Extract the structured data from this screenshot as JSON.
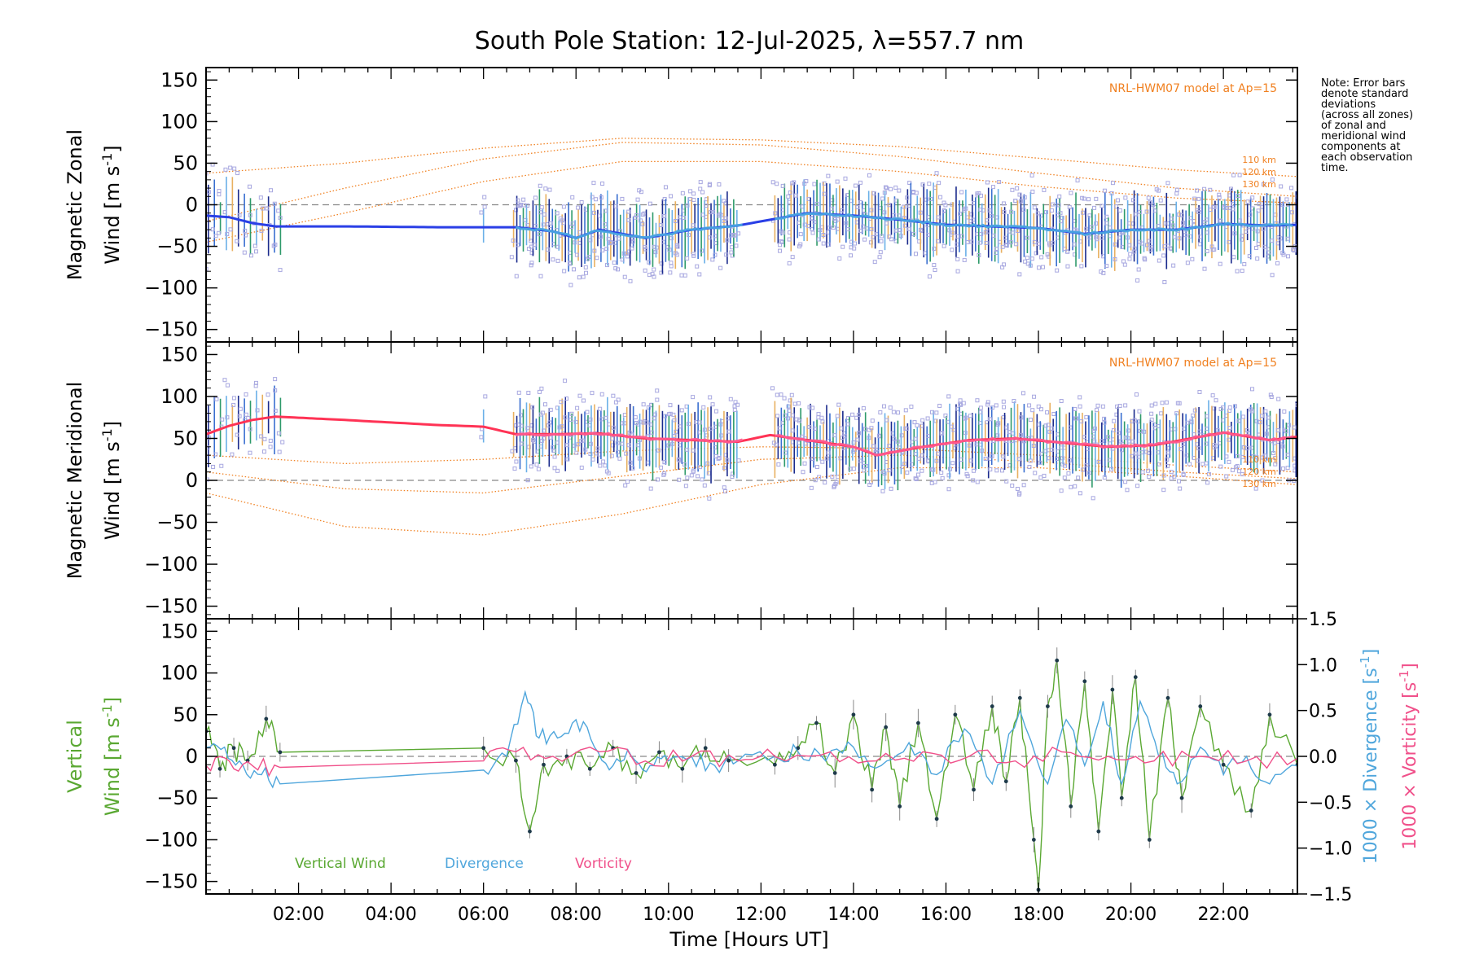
{
  "title": "South Pole Station: 12-Jul-2025, λ=557.7 nm",
  "note_lines": [
    "Note: Error bars",
    "denote standard",
    "deviations",
    "(across all zones)",
    "of zonal and",
    "meridional wind",
    "components at",
    "each observation",
    "time."
  ],
  "colors": {
    "zonal_fit": "#2a3fe6",
    "zonal_fit_light": "#4aa8e0",
    "meridional_fit": "#ff3355",
    "meridional_fit_light": "#ff5a90",
    "zone_points": "#a8a8e0",
    "model": "#f08020",
    "vertical": "#5aa832",
    "divergence": "#4fa6dc",
    "vorticity": "#f0508a",
    "zero_line": "#888888"
  },
  "chart_data": [
    {
      "type": "line",
      "panel": "zonal",
      "ylabel_line1": "Magnetic Zonal",
      "ylabel_line2": "Wind [m s",
      "ylabel_sup": "-1",
      "ylabel_close": "]",
      "ylim": [
        -165,
        165
      ],
      "yticks": [
        150,
        100,
        50,
        0,
        -50,
        -100,
        -150
      ],
      "xlim": [
        0.0,
        23.6
      ],
      "model_label": "NRL-HWM07 model at Ap=15",
      "model_altitudes": [
        "110 km",
        "120 km",
        "130 km"
      ],
      "model_curves": [
        {
          "name": "110 km",
          "x": [
            0,
            3,
            6,
            9,
            12,
            15,
            18,
            21,
            23.6
          ],
          "y": [
            38,
            50,
            68,
            80,
            78,
            70,
            56,
            42,
            34
          ]
        },
        {
          "name": "120 km",
          "x": [
            0,
            3,
            6,
            9,
            12,
            15,
            18,
            21,
            23.6
          ],
          "y": [
            -20,
            20,
            55,
            75,
            72,
            58,
            38,
            20,
            10
          ]
        },
        {
          "name": "130 km",
          "x": [
            0,
            3,
            6,
            9,
            12,
            15,
            18,
            21,
            23.6
          ],
          "y": [
            -45,
            -10,
            28,
            52,
            52,
            40,
            22,
            8,
            2
          ]
        }
      ],
      "fit": {
        "x": [
          0.0,
          0.5,
          1.0,
          1.5,
          3.0,
          5.0,
          6.7,
          7.5,
          8.0,
          8.5,
          9.5,
          10.5,
          11.5,
          12.2,
          13.0,
          14.0,
          15.0,
          16.0,
          17.0,
          18.0,
          19.0,
          20.0,
          21.0,
          22.0,
          23.0,
          23.6
        ],
        "y": [
          -13,
          -15,
          -22,
          -26,
          -26,
          -27,
          -27,
          -32,
          -40,
          -30,
          -40,
          -30,
          -25,
          -18,
          -10,
          -13,
          -18,
          -24,
          -26,
          -28,
          -35,
          -30,
          -30,
          -23,
          -25,
          -24
        ]
      }
    },
    {
      "type": "line",
      "panel": "meridional",
      "ylabel_line1": "Magnetic Meridional",
      "ylabel_line2": "Wind [m s",
      "ylabel_sup": "-1",
      "ylabel_close": "]",
      "ylim": [
        -165,
        165
      ],
      "yticks": [
        150,
        100,
        50,
        0,
        -50,
        -100,
        -150
      ],
      "xlim": [
        0.0,
        23.6
      ],
      "model_label": "NRL-HWM07 model at Ap=15",
      "model_altitudes": [
        "110 km",
        "120 km",
        "130 km"
      ],
      "model_curves": [
        {
          "name": "110 km",
          "x": [
            0,
            3,
            6,
            9,
            12,
            15,
            18,
            21,
            23.6
          ],
          "y": [
            30,
            20,
            25,
            35,
            40,
            38,
            30,
            18,
            10
          ]
        },
        {
          "name": "120 km",
          "x": [
            0,
            3,
            6,
            9,
            12,
            15,
            18,
            21,
            23.6
          ],
          "y": [
            10,
            -10,
            -15,
            5,
            25,
            30,
            22,
            10,
            2
          ]
        },
        {
          "name": "130 km",
          "x": [
            0,
            3,
            6,
            9,
            12,
            15,
            18,
            21,
            23.6
          ],
          "y": [
            -15,
            -55,
            -65,
            -40,
            -5,
            15,
            15,
            5,
            -5
          ]
        }
      ],
      "fit": {
        "x": [
          0.0,
          0.5,
          1.0,
          1.5,
          3.0,
          5.0,
          6.0,
          6.7,
          7.5,
          8.5,
          9.5,
          10.5,
          11.5,
          12.2,
          13.0,
          14.0,
          14.5,
          15.5,
          16.5,
          17.5,
          18.5,
          19.5,
          20.5,
          21.5,
          22.0,
          23.0,
          23.6
        ],
        "y": [
          55,
          65,
          72,
          76,
          72,
          66,
          64,
          55,
          55,
          56,
          50,
          48,
          46,
          54,
          48,
          40,
          30,
          40,
          48,
          50,
          45,
          40,
          42,
          52,
          57,
          48,
          52
        ]
      }
    },
    {
      "type": "line",
      "panel": "vertical",
      "ylabel_line1": "Vertical",
      "ylabel_line2": "Wind [m s",
      "ylabel_sup": "-1",
      "ylabel_close": "]",
      "ylim": [
        -165,
        165
      ],
      "yticks": [
        150,
        100,
        50,
        0,
        -50,
        -100,
        -150
      ],
      "y2label_div": "1000 × Divergence [s",
      "y2label_vor": "1000 × Vorticity [s",
      "y2label_sup": "-1",
      "y2label_close": "]",
      "y2lim": [
        -1.5,
        1.5
      ],
      "y2ticks": [
        "1.5",
        "1.0",
        "0.5",
        "0.0",
        "−0.5",
        "−1.0",
        "−1.5"
      ],
      "y2tick_values": [
        1.5,
        1.0,
        0.5,
        0.0,
        -0.5,
        -1.0,
        -1.5
      ],
      "xlim": [
        0.0,
        23.6
      ],
      "xticks": [
        "02:00",
        "04:00",
        "06:00",
        "08:00",
        "10:00",
        "12:00",
        "14:00",
        "16:00",
        "18:00",
        "20:00",
        "22:00"
      ],
      "xtick_values": [
        2,
        4,
        6,
        8,
        10,
        12,
        14,
        16,
        18,
        20,
        22
      ],
      "xlabel": "Time [Hours UT]",
      "legend": [
        "Vertical Wind",
        "Divergence",
        "Vorticity"
      ],
      "series": [
        {
          "name": "Vertical Wind",
          "x": [
            0.0,
            0.3,
            0.6,
            0.9,
            1.3,
            1.6,
            6.0,
            6.7,
            7.0,
            7.3,
            7.8,
            8.3,
            8.8,
            9.3,
            9.8,
            10.3,
            10.8,
            11.3,
            12.3,
            12.8,
            13.2,
            13.6,
            14.0,
            14.4,
            14.7,
            15.0,
            15.4,
            15.8,
            16.2,
            16.6,
            17.0,
            17.3,
            17.6,
            17.9,
            18.0,
            18.2,
            18.4,
            18.7,
            19.0,
            19.3,
            19.6,
            19.8,
            20.1,
            20.4,
            20.8,
            21.1,
            21.5,
            22.0,
            22.6,
            23.0,
            23.6
          ],
          "y": [
            30,
            -15,
            10,
            -5,
            45,
            5,
            10,
            -5,
            -90,
            -10,
            0,
            -15,
            10,
            -20,
            5,
            -15,
            10,
            -5,
            -10,
            10,
            40,
            -20,
            50,
            -40,
            35,
            -60,
            40,
            -75,
            50,
            -40,
            60,
            -30,
            70,
            -100,
            -160,
            60,
            115,
            -60,
            90,
            -90,
            80,
            -50,
            95,
            -100,
            70,
            -50,
            60,
            -10,
            -65,
            50,
            -10
          ]
        },
        {
          "name": "Divergence",
          "x": [
            0.0,
            0.4,
            0.8,
            1.2,
            1.6,
            6.0,
            6.5,
            6.9,
            7.2,
            7.6,
            8.0,
            8.4,
            8.8,
            9.2,
            9.6,
            10.0,
            10.5,
            11.0,
            11.5,
            12.3,
            12.8,
            13.4,
            14.0,
            14.6,
            15.2,
            15.8,
            16.4,
            17.0,
            17.6,
            18.2,
            18.6,
            19.0,
            19.4,
            19.8,
            20.2,
            20.6,
            21.0,
            21.5,
            22.0,
            22.5,
            23.0,
            23.6
          ],
          "y": [
            0.1,
            0.1,
            -0.1,
            -0.2,
            -0.3,
            -0.15,
            0.0,
            0.7,
            0.2,
            0.2,
            0.4,
            0.1,
            -0.1,
            0.0,
            -0.1,
            -0.05,
            0.0,
            -0.1,
            -0.05,
            0.0,
            0.05,
            -0.05,
            0.1,
            -0.1,
            0.15,
            -0.2,
            0.3,
            -0.3,
            0.5,
            -0.3,
            0.4,
            -0.1,
            0.6,
            -0.3,
            0.6,
            0.0,
            -0.3,
            0.1,
            -0.2,
            0.0,
            -0.3,
            -0.1
          ]
        },
        {
          "name": "Vorticity",
          "x": [
            0.0,
            0.5,
            1.0,
            1.6,
            6.0,
            6.7,
            7.5,
            8.5,
            9.5,
            10.5,
            11.5,
            12.3,
            13.5,
            14.5,
            15.5,
            16.5,
            17.5,
            18.5,
            19.5,
            20.5,
            21.5,
            22.5,
            23.6
          ],
          "y": [
            -0.1,
            -0.05,
            -0.1,
            -0.12,
            -0.05,
            0.05,
            0.0,
            0.05,
            -0.05,
            0.0,
            -0.05,
            0.0,
            0.05,
            -0.05,
            0.05,
            0.0,
            -0.05,
            0.05,
            0.0,
            -0.05,
            0.0,
            -0.05,
            -0.02
          ]
        }
      ]
    }
  ]
}
